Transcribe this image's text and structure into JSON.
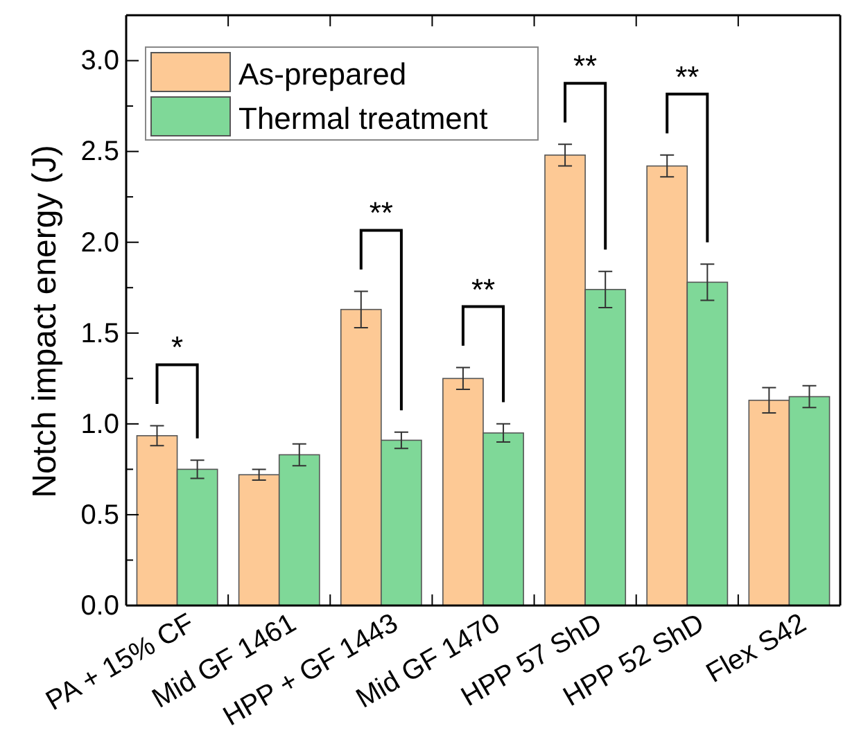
{
  "chart_data": {
    "type": "bar",
    "ylabel": "Notch impact energy (J)",
    "categories": [
      "PA + 15% CF",
      "Mid GF 1461",
      "HPP + GF 1443",
      "Mid GF 1470",
      "HPP 57 ShD",
      "HPP 52 ShD",
      "Flex S42"
    ],
    "series": [
      {
        "name": "As-prepared",
        "color": "#fdc995",
        "values": [
          0.935,
          0.72,
          1.63,
          1.25,
          2.48,
          2.42,
          1.13
        ],
        "errors": [
          0.055,
          0.03,
          0.1,
          0.06,
          0.06,
          0.06,
          0.07
        ]
      },
      {
        "name": "Thermal treatment",
        "color": "#7fd898",
        "values": [
          0.75,
          0.83,
          0.91,
          0.95,
          1.74,
          1.78,
          1.15
        ],
        "errors": [
          0.05,
          0.06,
          0.045,
          0.05,
          0.1,
          0.1,
          0.06
        ]
      }
    ],
    "ylim": [
      0,
      3.25
    ],
    "yticks": [
      {
        "value": 0,
        "label": "0.0"
      },
      {
        "value": 0.25,
        "label": null
      },
      0.5,
      {
        "value": 0.75,
        "label": null
      },
      {
        "value": 1,
        "label": "1.0"
      },
      {
        "value": 1.25,
        "label": null
      },
      1.5,
      {
        "value": 1.75,
        "label": null
      },
      {
        "value": 2,
        "label": "2.0"
      },
      {
        "value": 2.25,
        "label": null
      },
      2.5,
      {
        "value": 2.75,
        "label": null
      },
      {
        "value": 3,
        "label": "3.0"
      }
    ],
    "annotations": [
      "*",
      "**",
      "**",
      "**",
      "**"
    ],
    "legend": "top left",
    "grid": false
  }
}
